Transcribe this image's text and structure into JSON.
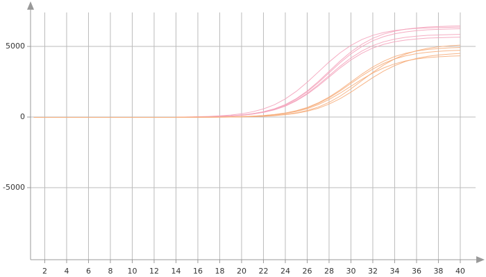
{
  "chart_data": {
    "type": "line",
    "x": [
      1,
      2,
      3,
      4,
      5,
      6,
      7,
      8,
      9,
      10,
      11,
      12,
      13,
      14,
      15,
      16,
      17,
      18,
      19,
      20,
      21,
      22,
      23,
      24,
      25,
      26,
      27,
      28,
      29,
      30,
      31,
      32,
      33,
      34,
      35,
      36,
      37,
      38,
      39,
      40
    ],
    "series": [
      {
        "color": "#f4a3bb",
        "values": [
          -20,
          -20,
          -20,
          -20,
          -20,
          -20,
          -20,
          -20,
          -20,
          -20,
          -20,
          -20,
          -20,
          -20,
          -2,
          8,
          24,
          48,
          87,
          146,
          240,
          378,
          587,
          884,
          1306,
          1846,
          2502,
          3230,
          3958,
          4615,
          5154,
          5577,
          5876,
          6084,
          6220,
          6311,
          6376,
          6409,
          6435,
          6454
        ]
      },
      {
        "color": "#f4a3bb",
        "values": [
          -20,
          -20,
          -20,
          -20,
          -20,
          -20,
          -20,
          -20,
          -20,
          -20,
          -20,
          -20,
          -20,
          -20,
          -3,
          7,
          22,
          46,
          83,
          141,
          232,
          366,
          568,
          856,
          1265,
          1788,
          2424,
          3130,
          3836,
          4472,
          4995,
          5404,
          5694,
          5896,
          6028,
          6116,
          6179,
          6211,
          6236,
          6255
        ]
      },
      {
        "color": "#f4a3bb",
        "values": [
          -20,
          -20,
          -20,
          -20,
          -20,
          -20,
          -20,
          -20,
          -20,
          -20,
          -20,
          -20,
          -20,
          -20,
          -4,
          5,
          20,
          42,
          77,
          131,
          216,
          342,
          531,
          800,
          1184,
          1673,
          2269,
          2930,
          3591,
          4187,
          4676,
          5060,
          5331,
          5520,
          5644,
          5727,
          5786,
          5815,
          5839,
          5856
        ]
      },
      {
        "color": "#f4a3bb",
        "values": [
          -20,
          -20,
          -20,
          -20,
          -20,
          -20,
          -20,
          -20,
          -20,
          -20,
          -20,
          -20,
          -20,
          -20,
          8,
          23,
          47,
          85,
          144,
          236,
          372,
          578,
          870,
          1286,
          1817,
          2463,
          3180,
          3897,
          4543,
          5074,
          5490,
          5785,
          5990,
          6124,
          6214,
          6278,
          6310,
          6335,
          6354,
          6361
        ]
      },
      {
        "color": "#f4a3bb",
        "values": [
          -20,
          -20,
          -20,
          -20,
          -20,
          -20,
          -20,
          -20,
          -20,
          -20,
          -20,
          -20,
          -20,
          -20,
          -5,
          5,
          18,
          40,
          73,
          126,
          208,
          329,
          512,
          772,
          1143,
          1616,
          2192,
          2830,
          3468,
          4044,
          4517,
          4888,
          5150,
          5332,
          5452,
          5532,
          5589,
          5617,
          5640,
          5657
        ]
      },
      {
        "color": "#f6ad7b",
        "values": [
          -20,
          -20,
          -20,
          -20,
          -20,
          -20,
          -20,
          -20,
          -20,
          -20,
          -20,
          -20,
          -20,
          -20,
          -15,
          -12,
          -7,
          2,
          14,
          33,
          62,
          108,
          180,
          287,
          447,
          675,
          1000,
          1415,
          1920,
          2480,
          3040,
          3545,
          3960,
          4285,
          4515,
          4675,
          4780,
          4850,
          4900,
          4925
        ]
      },
      {
        "color": "#f6ad7b",
        "values": [
          -20,
          -20,
          -20,
          -20,
          -20,
          -20,
          -20,
          -20,
          -20,
          -20,
          -20,
          -20,
          -20,
          -20,
          -15,
          -12,
          -7,
          1,
          12,
          30,
          59,
          103,
          172,
          274,
          428,
          647,
          959,
          1358,
          1842,
          2380,
          2918,
          3402,
          3801,
          4113,
          4334,
          4487,
          4588,
          4655,
          4703,
          4727
        ]
      },
      {
        "color": "#f6ad7b",
        "values": [
          -20,
          -20,
          -20,
          -20,
          -20,
          -20,
          -20,
          -20,
          -20,
          -20,
          -20,
          -20,
          -20,
          -20,
          -17,
          -15,
          -12,
          -8,
          0,
          11,
          28,
          55,
          98,
          164,
          262,
          410,
          619,
          918,
          1300,
          1765,
          2280,
          2795,
          3260,
          3642,
          3941,
          4152,
          4299,
          4396,
          4460,
          4506
        ]
      },
      {
        "color": "#f6ad7b",
        "values": [
          -20,
          -20,
          -20,
          -20,
          -20,
          -20,
          -20,
          -20,
          -20,
          -20,
          -20,
          -20,
          -20,
          -20,
          -15,
          -13,
          -8,
          -1,
          9,
          26,
          52,
          93,
          156,
          250,
          391,
          592,
          878,
          1243,
          1687,
          2180,
          2673,
          3117,
          3482,
          3768,
          3971,
          4112,
          4204,
          4266,
          4310,
          4332
        ]
      },
      {
        "color": "#f6ad7b",
        "values": [
          -20,
          -20,
          -20,
          -20,
          -20,
          -20,
          -20,
          -20,
          -20,
          -20,
          -20,
          -20,
          -20,
          -20,
          -16,
          -14,
          -11,
          -6,
          2,
          15,
          35,
          65,
          113,
          188,
          299,
          466,
          703,
          1041,
          1472,
          1998,
          2580,
          3162,
          3688,
          4119,
          4457,
          4696,
          4863,
          4972,
          5045,
          5097
        ]
      }
    ],
    "xlim": [
      0.7,
      41.4
    ],
    "xticks": [
      2,
      4,
      6,
      8,
      10,
      12,
      14,
      16,
      18,
      20,
      22,
      24,
      26,
      28,
      30,
      32,
      34,
      36,
      38,
      40
    ],
    "ylim": [
      -10100,
      7700
    ],
    "yticks": [
      -5000,
      0,
      5000
    ],
    "grid": true
  }
}
